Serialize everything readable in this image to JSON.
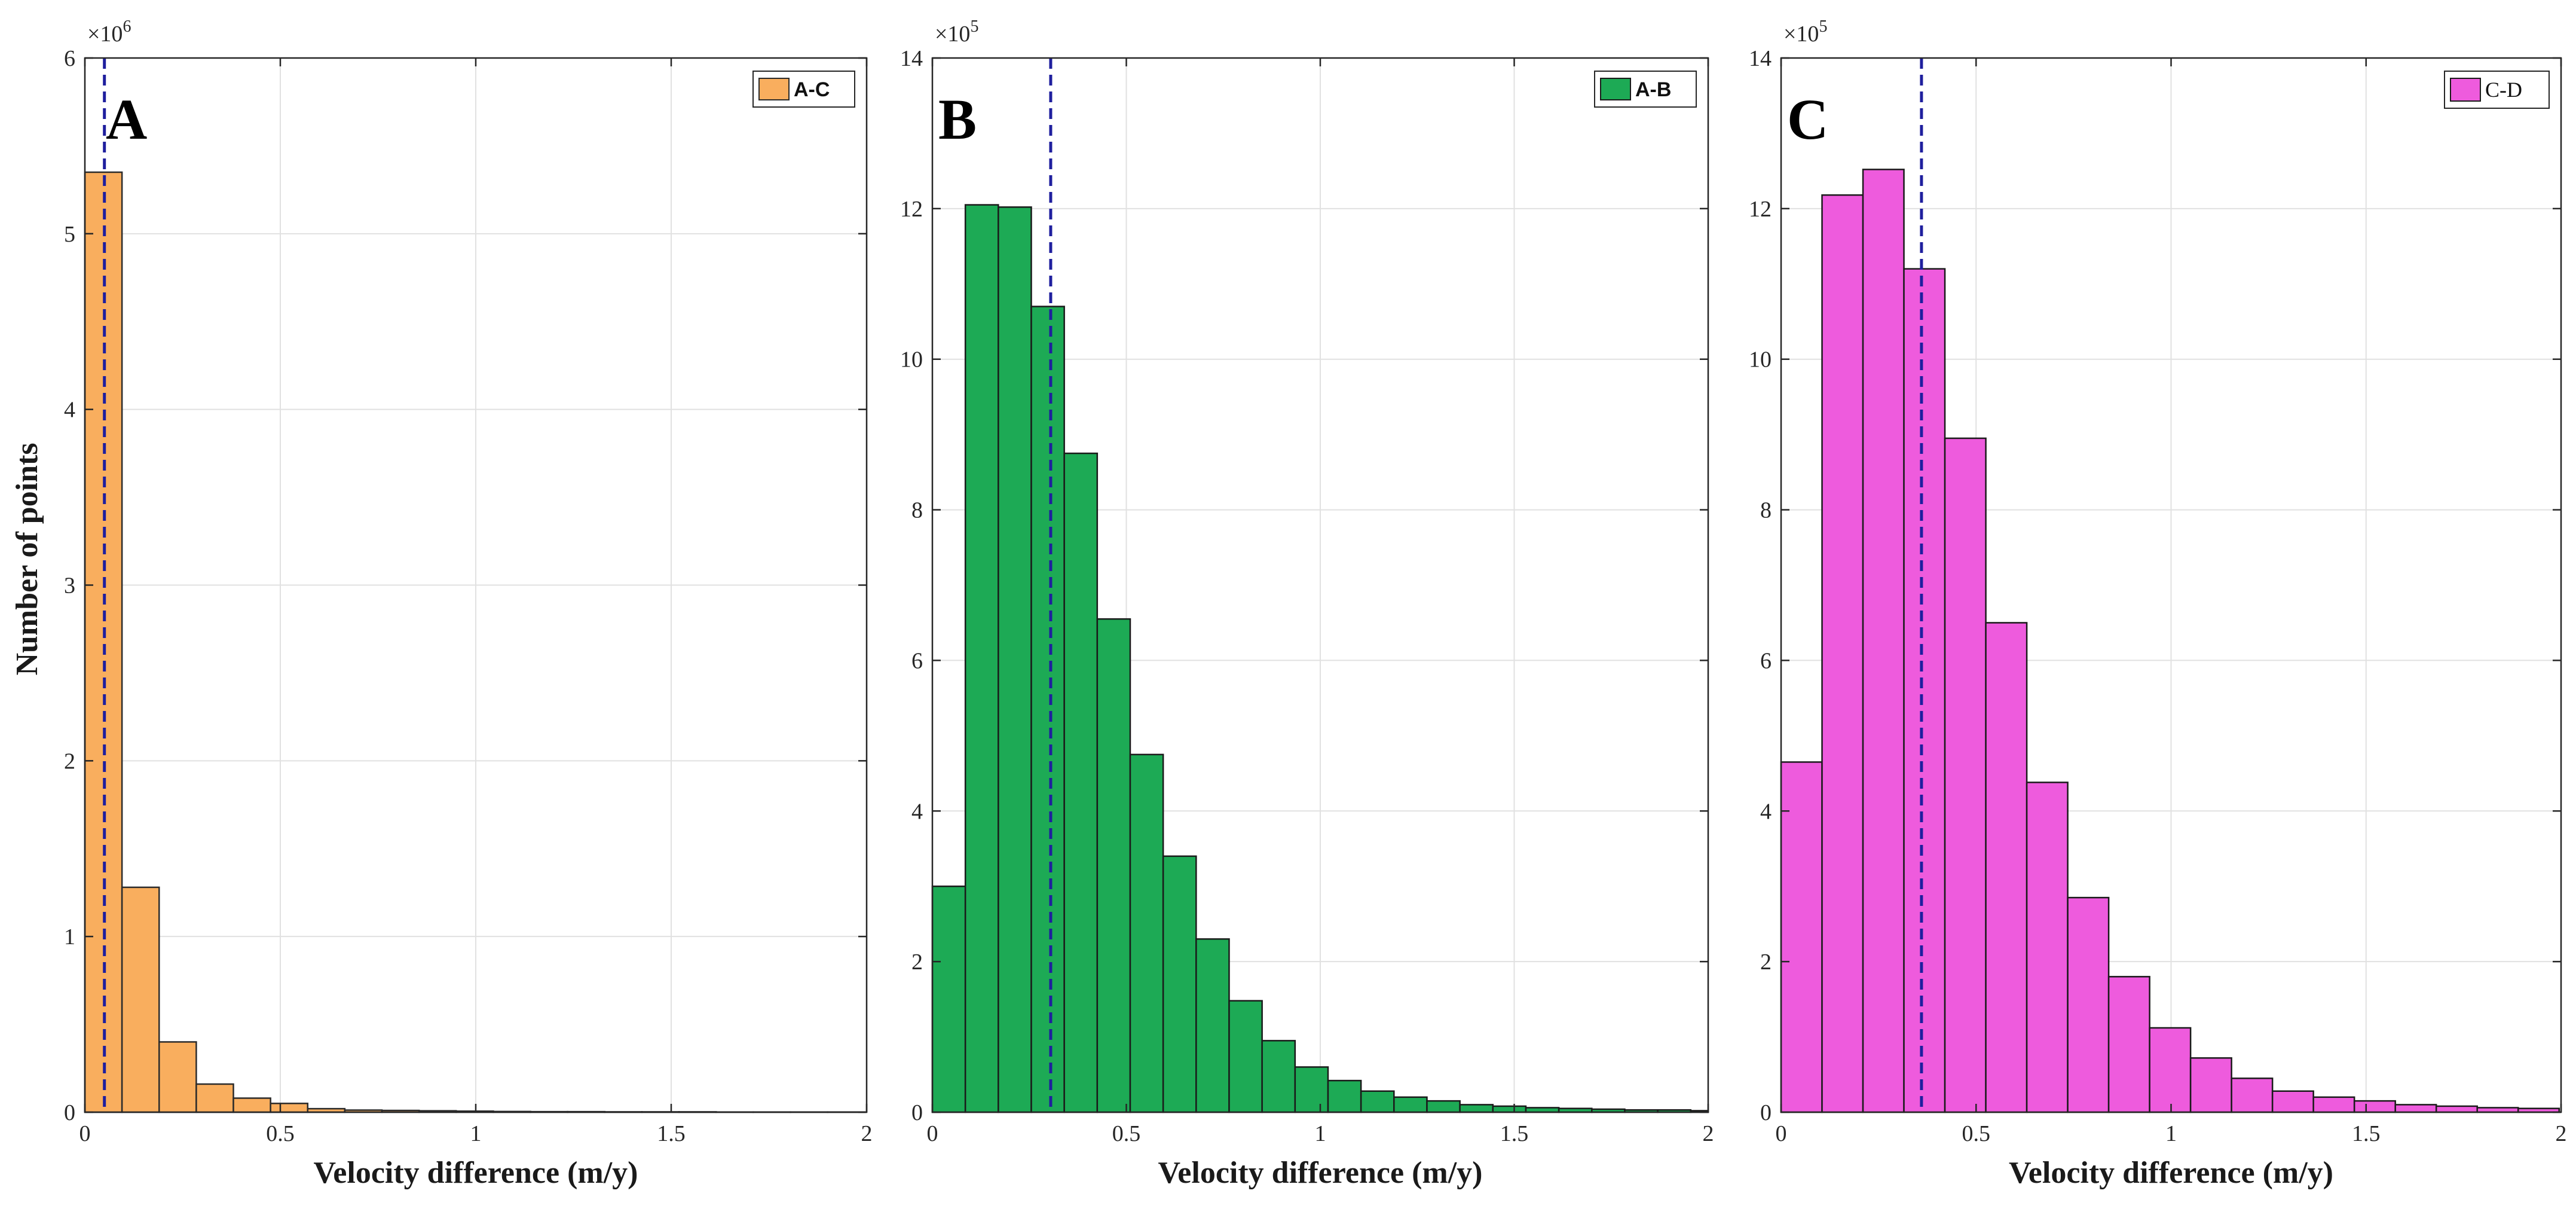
{
  "figure": {
    "ylabel": "Number of points"
  },
  "chart_data": [
    {
      "type": "bar",
      "panel_label": "A",
      "legend": "A-C",
      "color": "#F9AE5E",
      "edge_color": "#2b2b2b",
      "xlabel": "Velocity difference  (m/y)",
      "ylabel": "Number of points",
      "y_multiplier": "×10",
      "y_exponent": "6",
      "xlim": [
        0,
        2
      ],
      "ylim": [
        0,
        6
      ],
      "xticks": [
        0,
        0.5,
        1,
        1.5,
        2
      ],
      "xtick_labels": [
        "0",
        "0.5",
        "1",
        "1.5",
        "2"
      ],
      "yticks": [
        0,
        1,
        2,
        3,
        4,
        5,
        6
      ],
      "ytick_labels": [
        "0",
        "1",
        "2",
        "3",
        "4",
        "5",
        "6"
      ],
      "bin_edges": [
        0,
        0.095,
        0.19,
        0.285,
        0.38,
        0.475,
        0.57,
        0.665,
        0.76,
        0.855,
        0.95,
        1.045,
        1.14,
        1.235,
        1.33,
        1.425,
        1.52,
        1.615,
        1.71,
        1.805,
        1.9,
        1.995
      ],
      "values": [
        5.35,
        1.28,
        0.4,
        0.16,
        0.08,
        0.05,
        0.02,
        0.012,
        0.01,
        0.008,
        0.006,
        0.004,
        0.003,
        0.003,
        0.002,
        0.002,
        0.002,
        0.001,
        0.001,
        0.001,
        0.001
      ],
      "reference_line": 0.05,
      "legend_position": "top-right",
      "grid": true
    },
    {
      "type": "bar",
      "panel_label": "B",
      "legend": "A-B",
      "color": "#1DAA55",
      "edge_color": "#1a1a1a",
      "xlabel": "Velocity difference  (m/y)",
      "ylabel": "",
      "y_multiplier": "×10",
      "y_exponent": "5",
      "xlim": [
        0,
        2
      ],
      "ylim": [
        0,
        14
      ],
      "xticks": [
        0,
        0.5,
        1,
        1.5,
        2
      ],
      "xtick_labels": [
        "0",
        "0.5",
        "1",
        "1.5",
        "2"
      ],
      "yticks": [
        0,
        2,
        4,
        6,
        8,
        10,
        12,
        14
      ],
      "ytick_labels": [
        "0",
        "2",
        "4",
        "6",
        "8",
        "10",
        "12",
        "14"
      ],
      "bin_edges": [
        0,
        0.085,
        0.17,
        0.255,
        0.34,
        0.425,
        0.51,
        0.595,
        0.68,
        0.765,
        0.85,
        0.935,
        1.02,
        1.105,
        1.19,
        1.275,
        1.36,
        1.445,
        1.53,
        1.615,
        1.7,
        1.785,
        1.87,
        1.955,
        2.04
      ],
      "values": [
        3.0,
        12.05,
        12.02,
        10.7,
        8.75,
        6.55,
        4.75,
        3.4,
        2.3,
        1.48,
        0.95,
        0.6,
        0.42,
        0.28,
        0.2,
        0.15,
        0.1,
        0.08,
        0.06,
        0.05,
        0.04,
        0.03,
        0.03,
        0.02
      ],
      "reference_line": 0.305,
      "legend_position": "top-right",
      "grid": true
    },
    {
      "type": "bar",
      "panel_label": "C",
      "legend": "C-D",
      "color": "#EE5BDD",
      "edge_color": "#1a1a1a",
      "xlabel": "Velocity difference  (m/y)",
      "ylabel": "",
      "y_multiplier": "×10",
      "y_exponent": "5",
      "xlim": [
        0,
        2
      ],
      "ylim": [
        0,
        14
      ],
      "xticks": [
        0,
        0.5,
        1,
        1.5,
        2
      ],
      "xtick_labels": [
        "0",
        "0.5",
        "1",
        "1.5",
        "2"
      ],
      "yticks": [
        0,
        2,
        4,
        6,
        8,
        10,
        12,
        14
      ],
      "ytick_labels": [
        "0",
        "2",
        "4",
        "6",
        "8",
        "10",
        "12",
        "14"
      ],
      "bin_edges": [
        0,
        0.105,
        0.21,
        0.315,
        0.42,
        0.525,
        0.63,
        0.735,
        0.84,
        0.945,
        1.05,
        1.155,
        1.26,
        1.365,
        1.47,
        1.575,
        1.68,
        1.785,
        1.89,
        1.995
      ],
      "values": [
        4.65,
        12.18,
        12.52,
        11.2,
        8.95,
        6.5,
        4.38,
        2.85,
        1.8,
        1.12,
        0.72,
        0.45,
        0.28,
        0.2,
        0.15,
        0.1,
        0.08,
        0.06,
        0.05
      ],
      "reference_line": 0.36,
      "legend_position": "top-right",
      "grid": true
    }
  ]
}
